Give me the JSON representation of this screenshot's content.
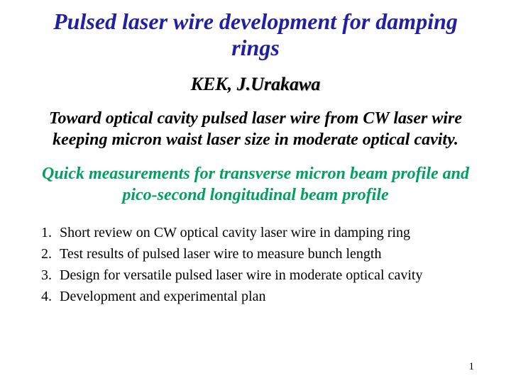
{
  "title": {
    "text": "Pulsed laser wire development for damping rings",
    "color": "#2020a0",
    "fontsize": 32
  },
  "author": {
    "institution": "KEK, ",
    "name": "J.Urakawa",
    "color": "#000000",
    "fontsize": 26
  },
  "subtitle1": {
    "text": "Toward optical cavity pulsed laser wire from CW laser wire keeping micron waist laser size in moderate optical cavity.",
    "color": "#000000",
    "fontsize": 24
  },
  "subtitle2": {
    "text": "Quick measurements for transverse micron beam profile and pico-second longitudinal beam profile",
    "color": "#00a060",
    "fontsize": 24
  },
  "outline": {
    "color": "#000000",
    "fontsize": 20,
    "items": [
      "Short review on CW optical cavity laser wire in damping ring",
      "Test results of pulsed laser wire to measure bunch length",
      "Design for versatile pulsed laser wire in moderate optical cavity",
      "Development and experimental plan"
    ]
  },
  "page_number": "1",
  "background_color": "#ffffff"
}
